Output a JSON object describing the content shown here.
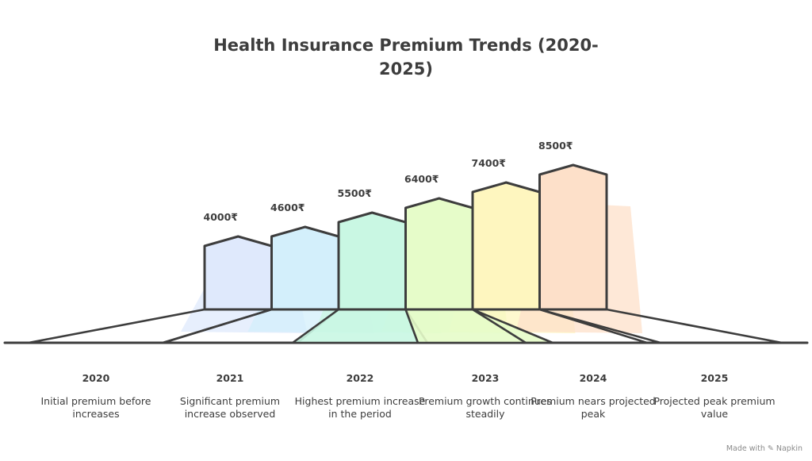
{
  "chart_data": {
    "type": "bar",
    "title": "Health Insurance Premium Trends (2020-2025)",
    "categories": [
      "2020",
      "2021",
      "2022",
      "2023",
      "2024",
      "2025"
    ],
    "values": [
      4000,
      4600,
      5500,
      6400,
      7400,
      8500
    ],
    "value_labels": [
      "4000₹",
      "4600₹",
      "5500₹",
      "6400₹",
      "7400₹",
      "8500₹"
    ],
    "descriptions": [
      "Initial premium before increases",
      "Significant premium increase observed",
      "Highest premium increase in the period",
      "Premium growth continues steadily",
      "Premium nears projected peak",
      "Projected peak premium value"
    ],
    "colors": [
      "#dfe9fc",
      "#d3effb",
      "#c9f7e3",
      "#e6fcc9",
      "#fef6bf",
      "#fde0c9"
    ],
    "stroke_color": "#3d3d3d"
  },
  "credit": "Made with ✎ Napkin"
}
